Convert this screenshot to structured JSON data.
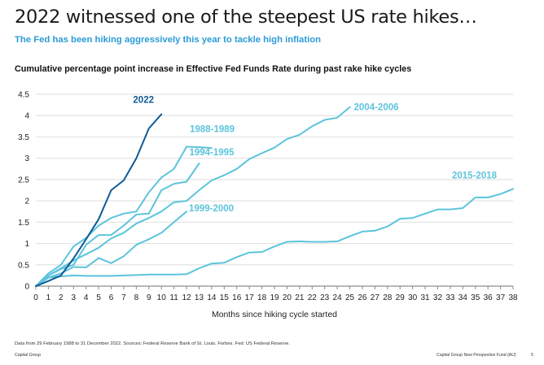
{
  "page": {
    "title": "2022 witnessed one of the steepest US rate hikes…",
    "subtitle": "The Fed has been hiking aggressively this year to tackle high inflation",
    "footnote": "Data from 29 February 1988 to 31 December 2022. Sources: Federal Reserve Bank of St. Louis, Forbes. Fed: US Federal Reserve.",
    "footer_left": "Capital Group",
    "footer_right": "Capital Group New Perspective Fund (AU)",
    "page_number": "5"
  },
  "colors": {
    "highlight": "#0f5a96",
    "past_cycles": "#5cc4dc",
    "grid": "#e3e3e3",
    "subtitle": "#2b9bd6"
  },
  "chart_data": {
    "type": "line",
    "title": "Cumulative percentage point increase in Effective Fed Funds Rate during past rake hike cycles",
    "xlabel": "Months since hiking cycle started",
    "ylabel": "",
    "xlim": [
      0,
      38
    ],
    "ylim": [
      0,
      4.5
    ],
    "x_ticks": [
      0,
      1,
      2,
      3,
      4,
      5,
      6,
      7,
      8,
      9,
      10,
      11,
      12,
      13,
      14,
      15,
      16,
      17,
      18,
      19,
      20,
      21,
      22,
      23,
      24,
      25,
      26,
      27,
      28,
      29,
      30,
      31,
      32,
      33,
      34,
      35,
      36,
      37,
      38
    ],
    "y_ticks": [
      "0",
      "0.5",
      "1",
      "1.5",
      "2",
      "2.5",
      "3",
      "3.5",
      "4",
      "4.5"
    ],
    "grid": true,
    "legend": "inline labels",
    "series": [
      {
        "name": "1988-1989",
        "highlight": false,
        "values": [
          0,
          0.3,
          0.5,
          0.93,
          1.13,
          1.42,
          1.6,
          1.7,
          1.75,
          2.2,
          2.55,
          2.75,
          3.27,
          3.26,
          3.24
        ]
      },
      {
        "name": "1994-1995",
        "highlight": false,
        "values": [
          0,
          0.25,
          0.4,
          0.5,
          0.97,
          1.2,
          1.2,
          1.42,
          1.68,
          1.7,
          2.25,
          2.4,
          2.45,
          2.88
        ]
      },
      {
        "name": "1999-2000",
        "highlight": false,
        "values": [
          0,
          0.2,
          0.3,
          0.45,
          0.44,
          0.66,
          0.54,
          0.7,
          0.97,
          1.1,
          1.25,
          1.5,
          1.75
        ]
      },
      {
        "name": "2004-2006",
        "highlight": false,
        "values": [
          0,
          0.25,
          0.42,
          0.6,
          0.75,
          0.9,
          1.12,
          1.25,
          1.47,
          1.6,
          1.75,
          1.97,
          2.0,
          2.25,
          2.48,
          2.6,
          2.75,
          2.98,
          3.12,
          3.25,
          3.45,
          3.55,
          3.75,
          3.9,
          3.95,
          4.2
        ]
      },
      {
        "name": "2015-2018",
        "highlight": false,
        "values": [
          0,
          0.2,
          0.23,
          0.25,
          0.24,
          0.24,
          0.24,
          0.25,
          0.26,
          0.27,
          0.27,
          0.27,
          0.28,
          0.42,
          0.53,
          0.55,
          0.68,
          0.79,
          0.8,
          0.93,
          1.04,
          1.05,
          1.04,
          1.04,
          1.05,
          1.17,
          1.28,
          1.3,
          1.4,
          1.58,
          1.6,
          1.7,
          1.8,
          1.8,
          1.83,
          2.08,
          2.08,
          2.16,
          2.28
        ]
      },
      {
        "name": "2022",
        "highlight": true,
        "values": [
          0,
          0.12,
          0.25,
          0.65,
          1.1,
          1.57,
          2.25,
          2.48,
          3.0,
          3.7,
          4.03
        ]
      }
    ]
  }
}
